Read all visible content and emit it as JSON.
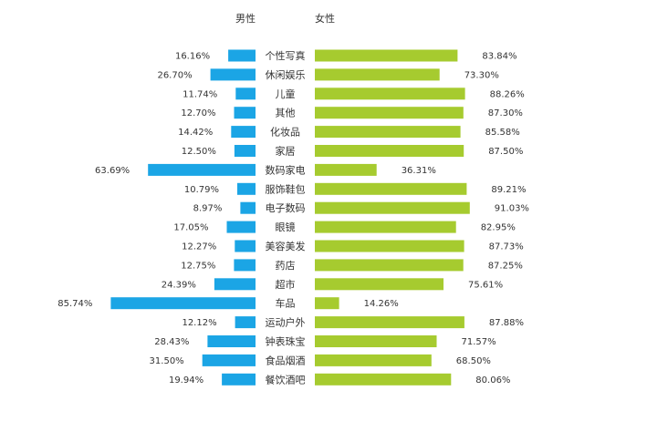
{
  "chart_data": {
    "type": "bar",
    "headers": {
      "male": "男性",
      "female": "女性"
    },
    "categories": [
      "个性写真",
      "休闲娱乐",
      "儿童",
      "其他",
      "化妆品",
      "家居",
      "数码家电",
      "服饰鞋包",
      "电子数码",
      "眼镜",
      "美容美发",
      "药店",
      "超市",
      "车品",
      "运动户外",
      "钟表珠宝",
      "食品烟酒",
      "餐饮酒吧"
    ],
    "series": [
      {
        "name": "男性",
        "color": "#1ba5e5",
        "values": [
          16.16,
          26.7,
          11.74,
          12.7,
          14.42,
          12.5,
          63.69,
          10.79,
          8.97,
          17.05,
          12.27,
          12.75,
          24.39,
          85.74,
          12.12,
          28.43,
          31.5,
          19.94
        ],
        "labels": [
          "16.16%",
          "26.70%",
          "11.74%",
          "12.70%",
          "14.42%",
          "12.50%",
          "63.69%",
          "10.79%",
          "8.97%",
          "17.05%",
          "12.27%",
          "12.75%",
          "24.39%",
          "85.74%",
          "12.12%",
          "28.43%",
          "31.50%",
          "19.94%"
        ]
      },
      {
        "name": "女性",
        "color": "#a6cb2f",
        "values": [
          83.84,
          73.3,
          88.26,
          87.3,
          85.58,
          87.5,
          36.31,
          89.21,
          91.03,
          82.95,
          87.73,
          87.25,
          75.61,
          14.26,
          87.88,
          71.57,
          68.5,
          80.06
        ],
        "labels": [
          "83.84%",
          "73.30%",
          "88.26%",
          "87.30%",
          "85.58%",
          "87.50%",
          "36.31%",
          "89.21%",
          "91.03%",
          "82.95%",
          "87.73%",
          "87.25%",
          "75.61%",
          "14.26%",
          "87.88%",
          "71.57%",
          "68.50%",
          "80.06%"
        ]
      }
    ]
  }
}
